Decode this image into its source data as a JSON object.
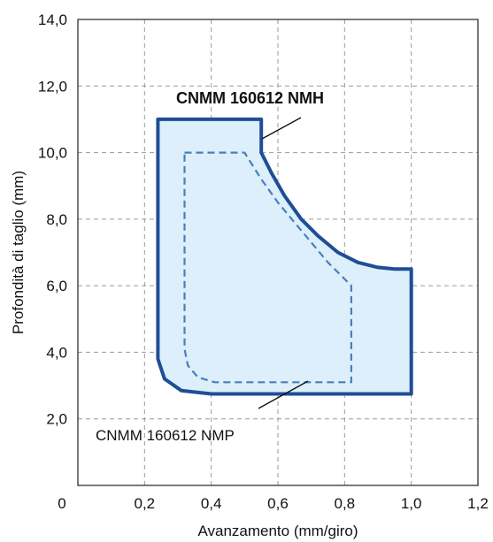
{
  "chart_data": {
    "type": "area",
    "title": "",
    "xlabel": "Avanzamento (mm/giro)",
    "ylabel": "Profondità di taglio (mm)",
    "xlim": [
      0,
      1.2
    ],
    "ylim": [
      0,
      14
    ],
    "x_ticks": [
      0,
      0.2,
      0.4,
      0.6,
      0.8,
      1.0,
      1.2
    ],
    "x_tick_labels": [
      "0",
      "0,2",
      "0,4",
      "0,6",
      "0,8",
      "1,0",
      "1,2"
    ],
    "y_ticks": [
      2,
      4,
      6,
      8,
      10,
      12,
      14
    ],
    "y_tick_labels": [
      "2,0",
      "4,0",
      "6,0",
      "8,0",
      "10,0",
      "12,0",
      "14,0"
    ],
    "grid": true,
    "series": [
      {
        "name": "CNMM 160612 NMH",
        "style": "solid",
        "filled": true,
        "color": "#1F4E96",
        "fill": "#DCEFFA",
        "x": [
          0.24,
          0.55,
          0.55,
          0.58,
          0.62,
          0.67,
          0.72,
          0.78,
          0.84,
          0.9,
          0.95,
          1.0,
          1.0,
          0.4,
          0.31,
          0.26,
          0.24,
          0.24
        ],
        "y": [
          11.0,
          11.0,
          10.0,
          9.4,
          8.7,
          8.0,
          7.5,
          7.0,
          6.7,
          6.55,
          6.5,
          6.5,
          2.75,
          2.75,
          2.85,
          3.2,
          3.8,
          11.0
        ]
      },
      {
        "name": "CNMM 160612 NMP",
        "style": "dashed",
        "filled": false,
        "color": "#4A7FB8",
        "x": [
          0.32,
          0.5,
          0.55,
          0.6,
          0.65,
          0.7,
          0.75,
          0.82,
          0.82,
          0.41,
          0.36,
          0.33,
          0.32,
          0.32
        ],
        "y": [
          10.0,
          10.0,
          9.2,
          8.5,
          7.9,
          7.3,
          6.7,
          6.0,
          3.1,
          3.1,
          3.25,
          3.6,
          4.1,
          10.0
        ]
      }
    ],
    "annotations": [
      {
        "text": "CNMM 160612 NMH",
        "bold": true
      },
      {
        "text": "CNMM 160612 NMP",
        "bold": false
      }
    ]
  }
}
